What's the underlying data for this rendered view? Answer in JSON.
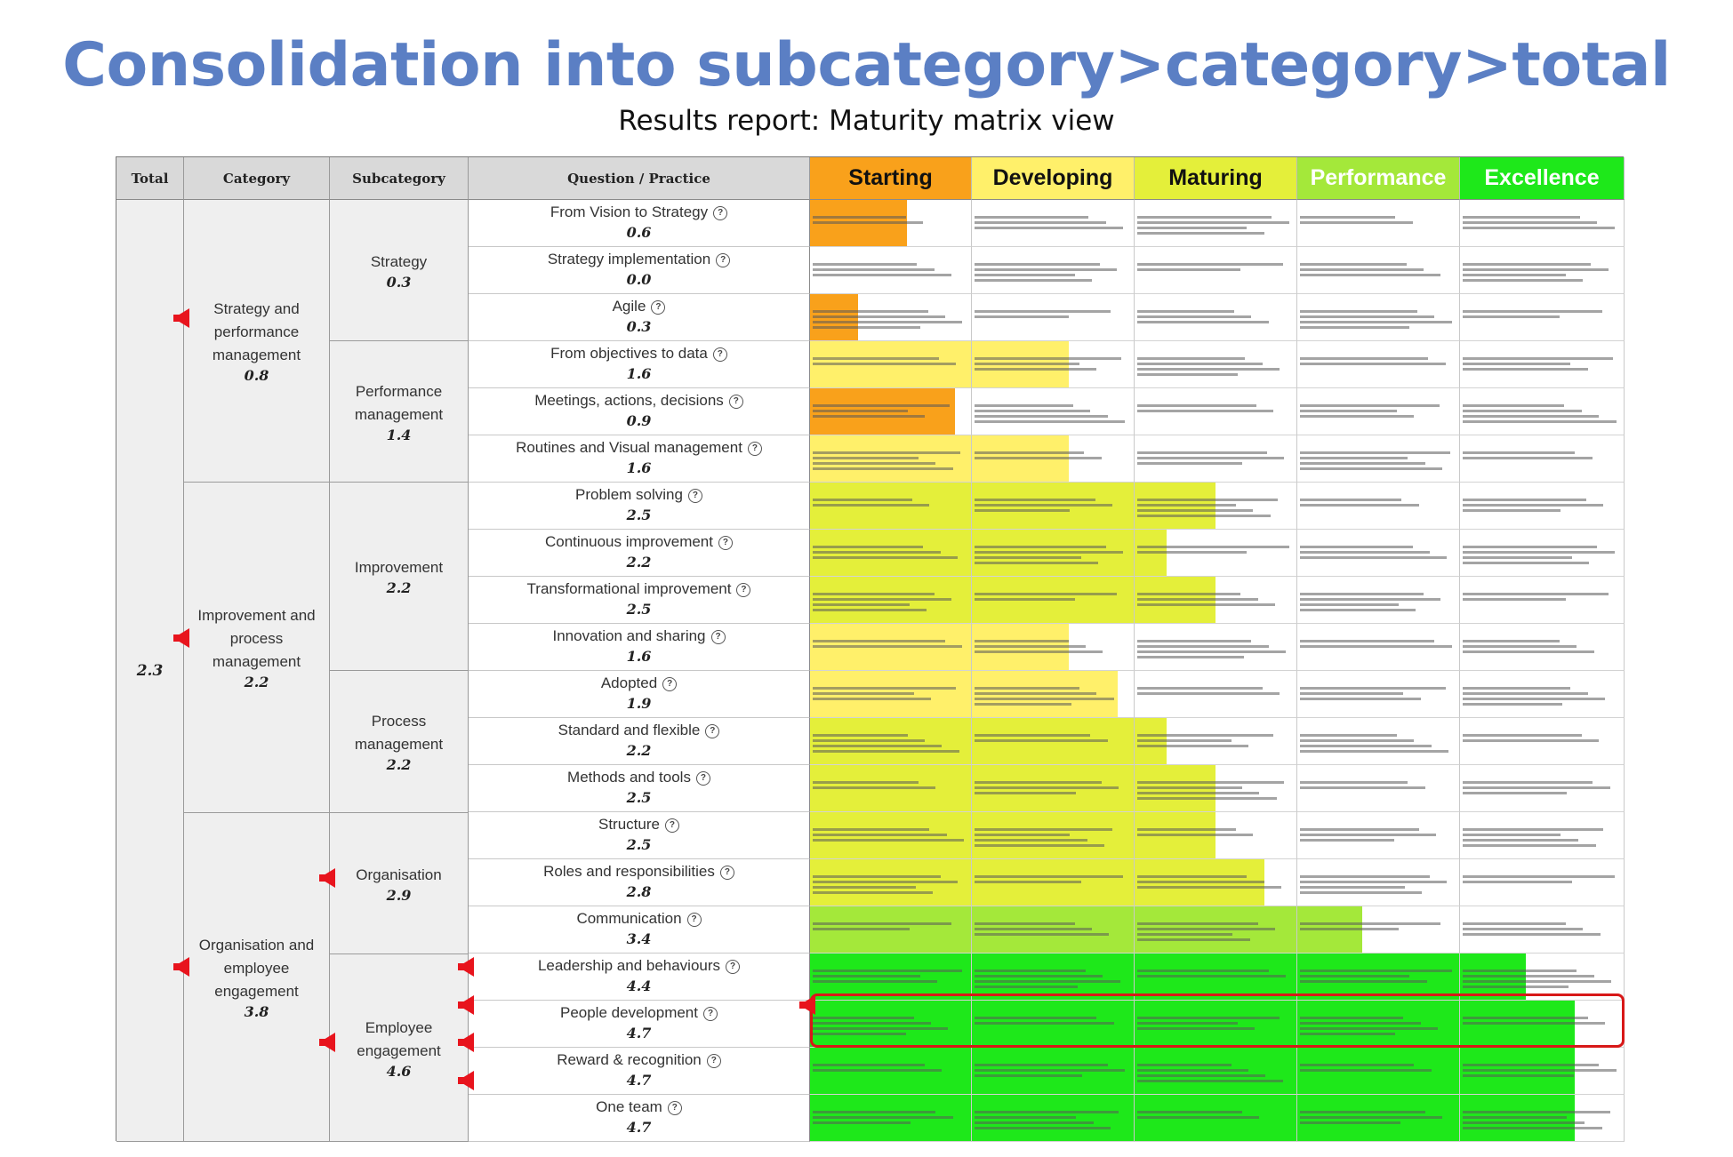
{
  "title": "Consolidation into subcategory>category>total",
  "subtitle": "Results report: Maturity matrix view",
  "headers": {
    "total": "Total",
    "category": "Category",
    "subcategory": "Subcategory",
    "question": "Question / Practice",
    "levels": [
      "Starting",
      "Developing",
      "Maturing",
      "Performance",
      "Excellence"
    ]
  },
  "colors": {
    "starting": "#f9a11b",
    "developing": "#fff06a",
    "maturing": "#e4ef3a",
    "performance": "#a4e83a",
    "excellence": "#1ee81a",
    "level_text": [
      "#111111",
      "#111111",
      "#111111",
      "#ffffff",
      "#ffffff"
    ],
    "arrow": "#e8141d"
  },
  "total": {
    "value": "2.3"
  },
  "categories": [
    {
      "name": "Strategy and performance management",
      "score": "0.8"
    },
    {
      "name": "Improvement and process management",
      "score": "2.2"
    },
    {
      "name": "Organisation and employee engagement",
      "score": "3.8"
    }
  ],
  "subcategories": [
    {
      "name": "Strategy",
      "score": "0.3"
    },
    {
      "name": "Performance management",
      "score": "1.4"
    },
    {
      "name": "Improvement",
      "score": "2.2"
    },
    {
      "name": "Process management",
      "score": "2.2"
    },
    {
      "name": "Organisation",
      "score": "2.9"
    },
    {
      "name": "Employee engagement",
      "score": "4.6"
    }
  ],
  "questions": [
    {
      "label": "From Vision to Strategy",
      "score": 0.6,
      "display": "0.6"
    },
    {
      "label": "Strategy implementation",
      "score": 0.0,
      "display": "0.0"
    },
    {
      "label": "Agile",
      "score": 0.3,
      "display": "0.3"
    },
    {
      "label": "From objectives to data",
      "score": 1.6,
      "display": "1.6"
    },
    {
      "label": "Meetings, actions, decisions",
      "score": 0.9,
      "display": "0.9"
    },
    {
      "label": "Routines and Visual management",
      "score": 1.6,
      "display": "1.6"
    },
    {
      "label": "Problem solving",
      "score": 2.5,
      "display": "2.5"
    },
    {
      "label": "Continuous improvement",
      "score": 2.2,
      "display": "2.2"
    },
    {
      "label": "Transformational improvement",
      "score": 2.5,
      "display": "2.5"
    },
    {
      "label": "Innovation and sharing",
      "score": 1.6,
      "display": "1.6"
    },
    {
      "label": "Adopted",
      "score": 1.9,
      "display": "1.9"
    },
    {
      "label": "Standard and flexible",
      "score": 2.2,
      "display": "2.2"
    },
    {
      "label": "Methods and tools",
      "score": 2.5,
      "display": "2.5"
    },
    {
      "label": "Structure",
      "score": 2.5,
      "display": "2.5"
    },
    {
      "label": "Roles and responsibilities",
      "score": 2.8,
      "display": "2.8"
    },
    {
      "label": "Communication",
      "score": 3.4,
      "display": "3.4"
    },
    {
      "label": "Leadership and behaviours",
      "score": 4.4,
      "display": "4.4"
    },
    {
      "label": "People development",
      "score": 4.7,
      "display": "4.7"
    },
    {
      "label": "Reward & recognition",
      "score": 4.7,
      "display": "4.7"
    },
    {
      "label": "One team",
      "score": 4.7,
      "display": "4.7"
    }
  ],
  "info_icon": "help-circle-icon",
  "arrow_icon": "left-arrow-icon"
}
